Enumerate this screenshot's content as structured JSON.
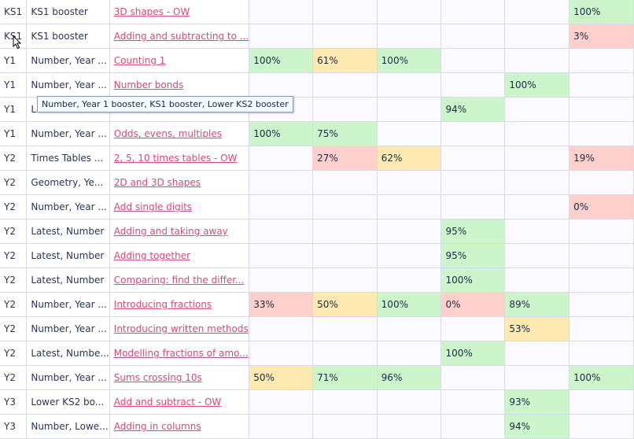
{
  "rows": [
    {
      "year": "KS1",
      "tags": "KS1 booster",
      "activity": "3D shapes - OW",
      "scores": [
        "",
        "",
        "",
        "",
        "",
        "100%"
      ],
      "status": [
        "",
        "",
        "",
        "",
        "",
        "green"
      ]
    },
    {
      "year": "KS1",
      "tags": "KS1 booster",
      "activity": "Adding and subtracting to ...",
      "scores": [
        "",
        "",
        "",
        "",
        "",
        "3%"
      ],
      "status": [
        "",
        "",
        "",
        "",
        "",
        "red"
      ]
    },
    {
      "year": "Y1",
      "tags": "Number, Year ...",
      "activity": "Counting 1",
      "scores": [
        "100%",
        "61%",
        "100%",
        "",
        "",
        ""
      ],
      "status": [
        "green",
        "yellow",
        "green",
        "",
        "",
        ""
      ]
    },
    {
      "year": "Y1",
      "tags": "Number, Year ...",
      "activity": "Number bonds",
      "scores": [
        "",
        "",
        "",
        "",
        "100%",
        ""
      ],
      "status": [
        "",
        "",
        "",
        "",
        "green",
        ""
      ]
    },
    {
      "year": "Y1",
      "tags": "La",
      "activity": "",
      "scores": [
        "",
        "",
        "",
        "94%",
        "",
        ""
      ],
      "status": [
        "",
        "",
        "",
        "green",
        "",
        ""
      ]
    },
    {
      "year": "Y1",
      "tags": "Number, Year ...",
      "activity": "Odds, evens, multiples",
      "scores": [
        "100%",
        "75%",
        "",
        "",
        "",
        ""
      ],
      "status": [
        "green",
        "green",
        "",
        "",
        "",
        ""
      ]
    },
    {
      "year": "Y2",
      "tags": "Times Tables ...",
      "activity": "2, 5, 10 times tables - OW",
      "scores": [
        "",
        "27%",
        "62%",
        "",
        "",
        "19%"
      ],
      "status": [
        "",
        "red",
        "yellow",
        "",
        "",
        "red"
      ]
    },
    {
      "year": "Y2",
      "tags": "Geometry, Ye...",
      "activity": "2D and 3D shapes",
      "scores": [
        "",
        "",
        "",
        "",
        "",
        ""
      ],
      "status": [
        "",
        "",
        "",
        "",
        "",
        ""
      ]
    },
    {
      "year": "Y2",
      "tags": "Number, Year ...",
      "activity": "Add single digits",
      "scores": [
        "",
        "",
        "",
        "",
        "",
        "0%"
      ],
      "status": [
        "",
        "",
        "",
        "",
        "",
        "red"
      ]
    },
    {
      "year": "Y2",
      "tags": "Latest, Number",
      "activity": "Adding and taking away",
      "scores": [
        "",
        "",
        "",
        "95%",
        "",
        ""
      ],
      "status": [
        "",
        "",
        "",
        "green",
        "",
        ""
      ]
    },
    {
      "year": "Y2",
      "tags": "Latest, Number",
      "activity": "Adding together",
      "scores": [
        "",
        "",
        "",
        "95%",
        "",
        ""
      ],
      "status": [
        "",
        "",
        "",
        "green",
        "",
        ""
      ]
    },
    {
      "year": "Y2",
      "tags": "Latest, Number",
      "activity": "Comparing: find the differ...",
      "scores": [
        "",
        "",
        "",
        "100%",
        "",
        ""
      ],
      "status": [
        "",
        "",
        "",
        "green",
        "",
        ""
      ]
    },
    {
      "year": "Y2",
      "tags": "Number, Year ...",
      "activity": "Introducing fractions",
      "scores": [
        "33%",
        "50%",
        "100%",
        "0%",
        "89%",
        ""
      ],
      "status": [
        "red",
        "yellow",
        "green",
        "red",
        "green",
        ""
      ]
    },
    {
      "year": "Y2",
      "tags": "Number, Year ...",
      "activity": "Introducing written methods",
      "scores": [
        "",
        "",
        "",
        "",
        "53%",
        ""
      ],
      "status": [
        "",
        "",
        "",
        "",
        "yellow",
        ""
      ]
    },
    {
      "year": "Y2",
      "tags": "Latest, Numbe...",
      "activity": "Modelling fractions of amo...",
      "scores": [
        "",
        "",
        "",
        "100%",
        "",
        ""
      ],
      "status": [
        "",
        "",
        "",
        "green",
        "",
        ""
      ]
    },
    {
      "year": "Y2",
      "tags": "Number, Year ...",
      "activity": "Sums crossing 10s",
      "scores": [
        "50%",
        "71%",
        "96%",
        "",
        "",
        "100%"
      ],
      "status": [
        "yellow",
        "green",
        "green",
        "",
        "",
        "green"
      ]
    },
    {
      "year": "Y3",
      "tags": "Lower KS2 bo...",
      "activity": "Add and subtract - OW",
      "scores": [
        "",
        "",
        "",
        "",
        "93%",
        ""
      ],
      "status": [
        "",
        "",
        "",
        "",
        "green",
        ""
      ]
    },
    {
      "year": "Y3",
      "tags": "Number, Lowe...",
      "activity": "Adding in columns",
      "scores": [
        "",
        "",
        "",
        "",
        "94%",
        ""
      ],
      "status": [
        "",
        "",
        "",
        "",
        "green",
        ""
      ]
    }
  ],
  "tooltip": {
    "text": "Number, Year 1 booster, KS1 booster, Lower KS2 booster"
  },
  "colors": {
    "green": "#ccf5cc",
    "yellow": "#feeab0",
    "red": "#fdd0cc",
    "link": "#d6497a"
  }
}
